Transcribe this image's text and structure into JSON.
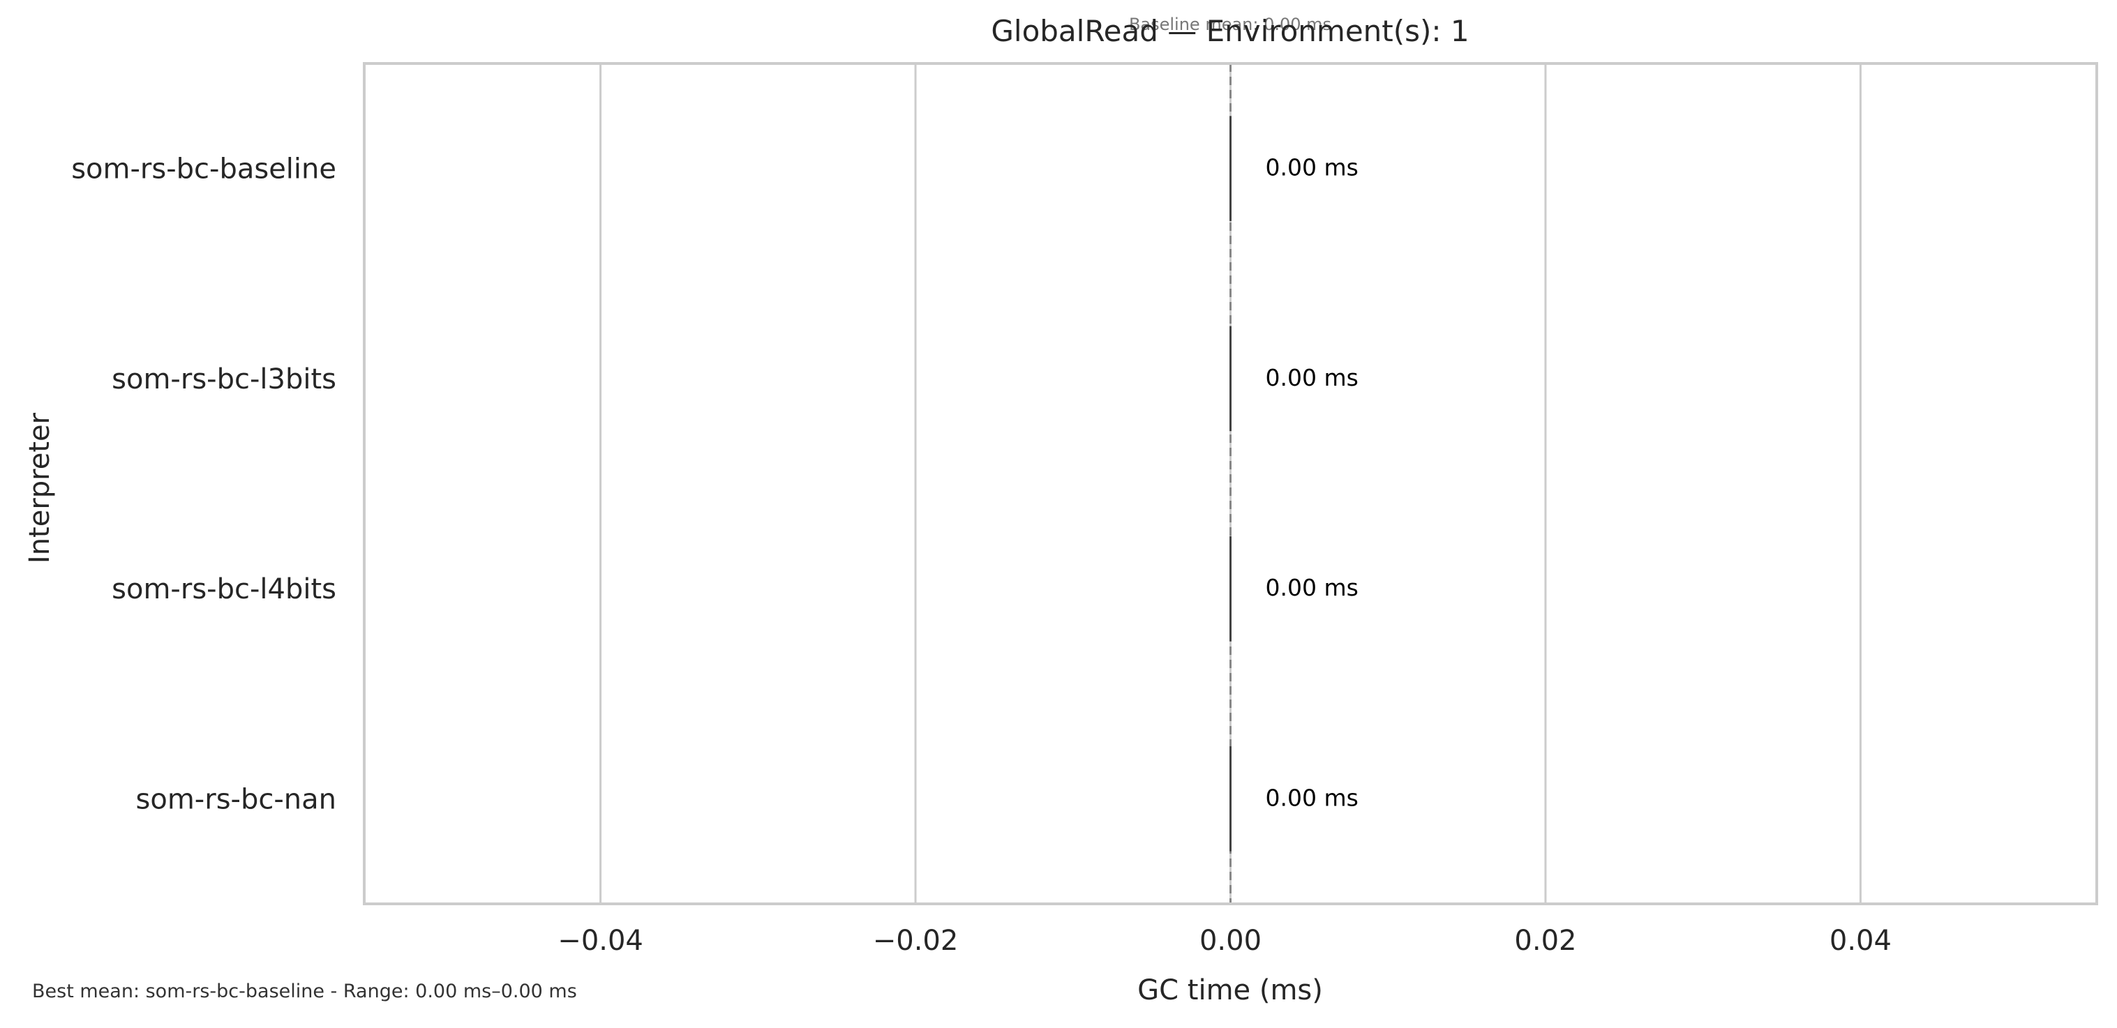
{
  "chart_data": {
    "type": "bar",
    "orientation": "horizontal",
    "title": "GlobalRead — Environment(s): 1",
    "annotation": "Baseline mean: 0.00 ms",
    "xlabel": "GC time (ms)",
    "ylabel": "Interpreter",
    "xlim": [
      -0.055,
      0.055
    ],
    "xticks": [
      -0.04,
      -0.02,
      0.0,
      0.02,
      0.04
    ],
    "xtick_labels": [
      "−0.04",
      "−0.02",
      "0.00",
      "0.02",
      "0.04"
    ],
    "categories": [
      "som-rs-bc-baseline",
      "som-rs-bc-l3bits",
      "som-rs-bc-l4bits",
      "som-rs-bc-nan"
    ],
    "values": [
      0.0,
      0.0,
      0.0,
      0.0
    ],
    "value_labels": [
      "0.00 ms",
      "0.00 ms",
      "0.00 ms",
      "0.00 ms"
    ],
    "baseline": 0.0,
    "grid": "vertical",
    "colors": {
      "grid": "#cccccc",
      "frame": "#cccccc",
      "baseline_line": "#888888",
      "bar_edge": "#444444",
      "text": "#262626"
    }
  },
  "footer": {
    "note": "Best mean: som-rs-bc-baseline - Range: 0.00 ms–0.00 ms"
  }
}
